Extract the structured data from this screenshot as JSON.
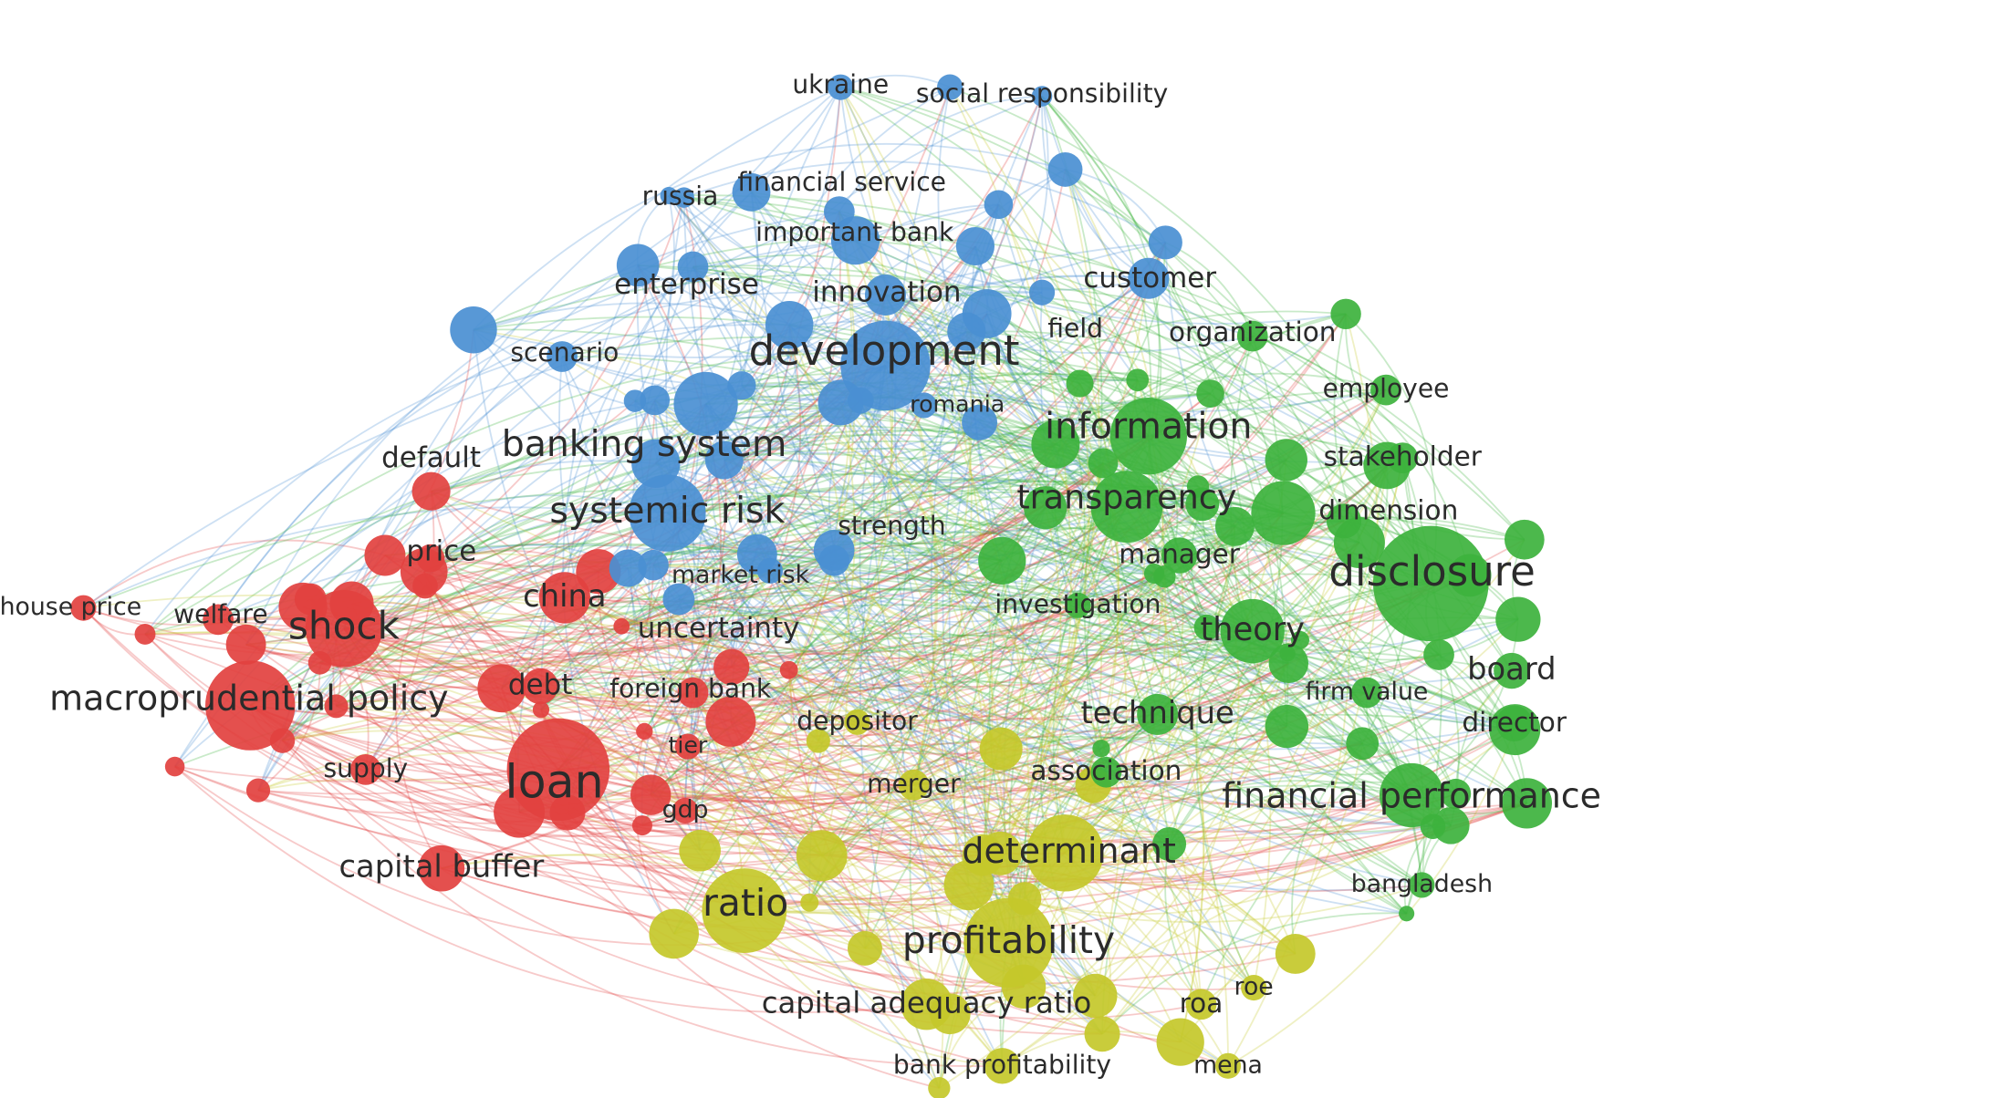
{
  "nodes": [
    {
      "label": "ukraine",
      "color": "#4a8fd3"
    },
    {
      "label": "social responsibility",
      "color": "#4a8fd3"
    },
    {
      "label": "russia",
      "color": "#4a8fd3"
    },
    {
      "label": "financial service",
      "color": "#4a8fd3"
    },
    {
      "label": "important bank",
      "color": "#4a8fd3"
    },
    {
      "label": "enterprise",
      "color": "#4a8fd3"
    },
    {
      "label": "innovation",
      "color": "#4a8fd3"
    },
    {
      "label": "customer",
      "color": "#4a8fd3"
    },
    {
      "label": "development",
      "color": "#4a8fd3"
    },
    {
      "label": "field",
      "color": "#4a8fd3"
    },
    {
      "label": "scenario",
      "color": "#4a8fd3"
    },
    {
      "label": "romania",
      "color": "#4a8fd3"
    },
    {
      "label": "banking system",
      "color": "#4a8fd3"
    },
    {
      "label": "systemic risk",
      "color": "#4a8fd3"
    },
    {
      "label": "strength",
      "color": "#4a8fd3"
    },
    {
      "label": "market risk",
      "color": "#4a8fd3"
    },
    {
      "label": "default",
      "color": "#e2413f"
    },
    {
      "label": "price",
      "color": "#e2413f"
    },
    {
      "label": "china",
      "color": "#e2413f"
    },
    {
      "label": "house price",
      "color": "#e2413f"
    },
    {
      "label": "welfare",
      "color": "#e2413f"
    },
    {
      "label": "shock",
      "color": "#e2413f"
    },
    {
      "label": "uncertainty",
      "color": "#e2413f"
    },
    {
      "label": "macroprudential policy",
      "color": "#e2413f"
    },
    {
      "label": "debt",
      "color": "#e2413f"
    },
    {
      "label": "foreign bank",
      "color": "#e2413f"
    },
    {
      "label": "tier",
      "color": "#e2413f"
    },
    {
      "label": "supply",
      "color": "#e2413f"
    },
    {
      "label": "loan",
      "color": "#e2413f"
    },
    {
      "label": "gdp",
      "color": "#e2413f"
    },
    {
      "label": "capital buffer",
      "color": "#e2413f"
    },
    {
      "label": "organization",
      "color": "#3db23d"
    },
    {
      "label": "employee",
      "color": "#3db23d"
    },
    {
      "label": "information",
      "color": "#3db23d"
    },
    {
      "label": "stakeholder",
      "color": "#3db23d"
    },
    {
      "label": "transparency",
      "color": "#3db23d"
    },
    {
      "label": "dimension",
      "color": "#3db23d"
    },
    {
      "label": "manager",
      "color": "#3db23d"
    },
    {
      "label": "disclosure",
      "color": "#3db23d"
    },
    {
      "label": "investigation",
      "color": "#3db23d"
    },
    {
      "label": "theory",
      "color": "#3db23d"
    },
    {
      "label": "board",
      "color": "#3db23d"
    },
    {
      "label": "firm value",
      "color": "#3db23d"
    },
    {
      "label": "technique",
      "color": "#3db23d"
    },
    {
      "label": "director",
      "color": "#3db23d"
    },
    {
      "label": "association",
      "color": "#3db23d"
    },
    {
      "label": "financial performance",
      "color": "#3db23d"
    },
    {
      "label": "bangladesh",
      "color": "#3db23d"
    },
    {
      "label": "depositor",
      "color": "#c4c82a"
    },
    {
      "label": "merger",
      "color": "#c4c82a"
    },
    {
      "label": "determinant",
      "color": "#c4c82a"
    },
    {
      "label": "ratio",
      "color": "#c4c82a"
    },
    {
      "label": "profitability",
      "color": "#c4c82a"
    },
    {
      "label": "capital adequacy ratio",
      "color": "#c4c82a"
    },
    {
      "label": "roa",
      "color": "#c4c82a"
    },
    {
      "label": "roe",
      "color": "#c4c82a"
    },
    {
      "label": "bank profitability",
      "color": "#c4c82a"
    },
    {
      "label": "mena",
      "color": "#c4c82a"
    }
  ]
}
